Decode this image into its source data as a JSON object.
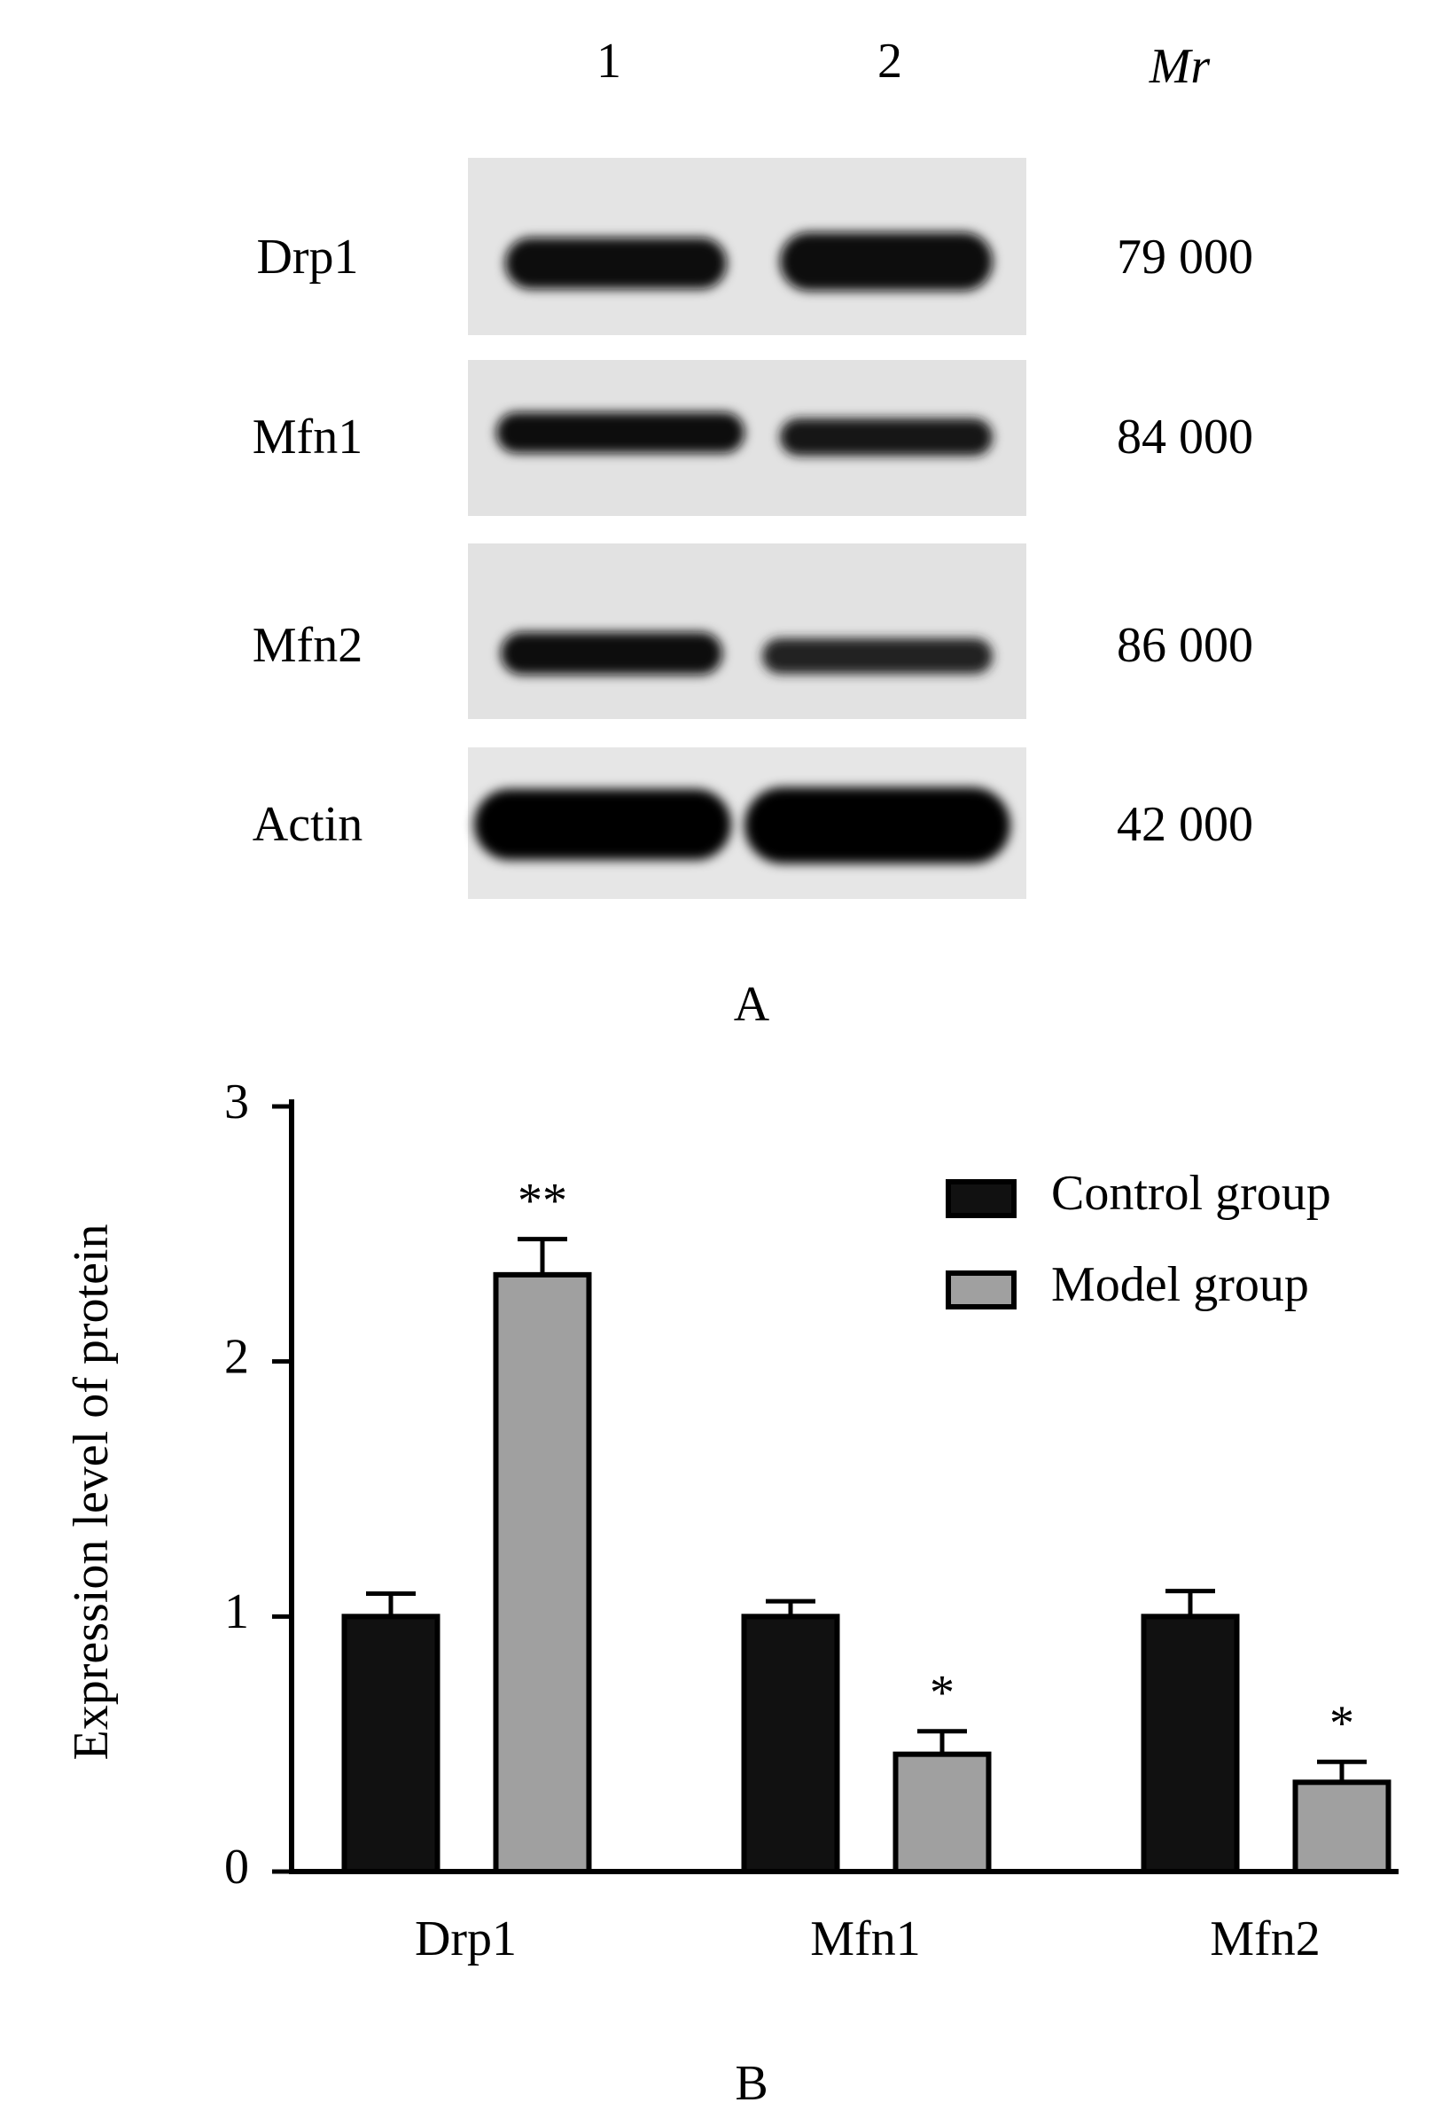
{
  "blot": {
    "lanes": [
      "1",
      "2"
    ],
    "mr_label": "Mr",
    "panel_label": "A",
    "rows": [
      {
        "label": "Drp1",
        "mr": "79 000"
      },
      {
        "label": "Mfn1",
        "mr": "84 000"
      },
      {
        "label": "Mfn2",
        "mr": "86 000"
      },
      {
        "label": "Actin",
        "mr": "42 000"
      }
    ]
  },
  "chart_data": {
    "type": "bar",
    "panel_label": "B",
    "ylabel": "Expression level of protein",
    "categories": [
      "Drp1",
      "Mfn1",
      "Mfn2"
    ],
    "series": [
      {
        "name": "Control group",
        "color": "#111111",
        "values": [
          1,
          1,
          1
        ],
        "errors": [
          0.09,
          0.06,
          0.1
        ]
      },
      {
        "name": "Model group",
        "color": "#a0a0a0",
        "values": [
          2.34,
          0.46,
          0.35
        ],
        "errors": [
          0.14,
          0.09,
          0.08
        ]
      }
    ],
    "annotations": [
      "**",
      "*",
      "*"
    ],
    "ylim": [
      0,
      3
    ],
    "yticks": [
      0,
      1,
      2,
      3
    ],
    "legend": "upper right"
  }
}
